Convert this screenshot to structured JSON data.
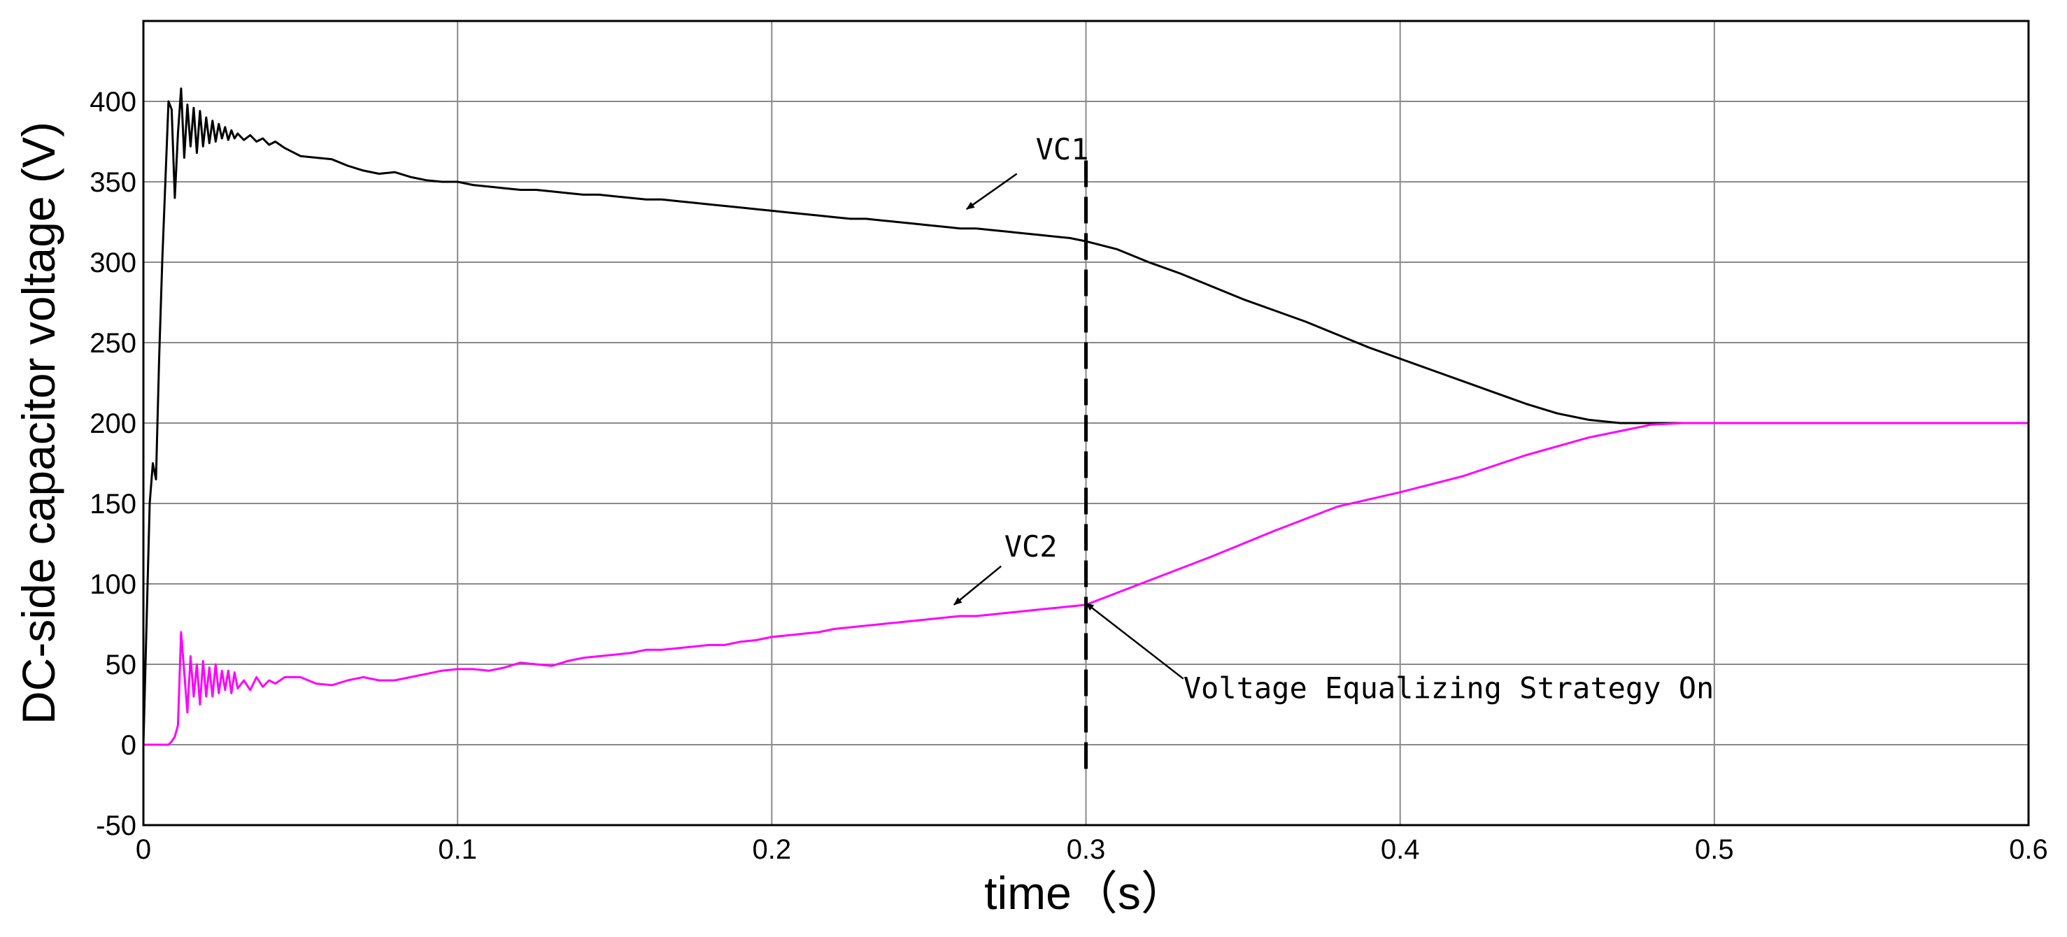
{
  "chart_data": {
    "type": "line",
    "title": "",
    "xlabel": "time（s）",
    "ylabel": "DC-side capacitor voltage (V)",
    "xlim": [
      0,
      0.6
    ],
    "ylim": [
      -50,
      450
    ],
    "grid": true,
    "x_ticks": [
      {
        "value": 0,
        "label": "0"
      },
      {
        "value": 0.1,
        "label": "0.1"
      },
      {
        "value": 0.2,
        "label": "0.2"
      },
      {
        "value": 0.3,
        "label": "0.3"
      },
      {
        "value": 0.4,
        "label": "0.4"
      },
      {
        "value": 0.5,
        "label": "0.5"
      },
      {
        "value": 0.6,
        "label": "0.6"
      }
    ],
    "y_ticks": [
      {
        "value": -50,
        "label": "-50"
      },
      {
        "value": 0,
        "label": "0"
      },
      {
        "value": 50,
        "label": "50"
      },
      {
        "value": 100,
        "label": "100"
      },
      {
        "value": 150,
        "label": "150"
      },
      {
        "value": 200,
        "label": "200"
      },
      {
        "value": 250,
        "label": "250"
      },
      {
        "value": 300,
        "label": "300"
      },
      {
        "value": 350,
        "label": "350"
      },
      {
        "value": 400,
        "label": "400"
      }
    ],
    "series": [
      {
        "name": "VC1",
        "color": "#000000",
        "x": [
          0,
          0.002,
          0.003,
          0.004,
          0.005,
          0.006,
          0.008,
          0.009,
          0.01,
          0.011,
          0.012,
          0.013,
          0.014,
          0.015,
          0.016,
          0.017,
          0.018,
          0.019,
          0.02,
          0.021,
          0.022,
          0.023,
          0.024,
          0.025,
          0.026,
          0.027,
          0.028,
          0.029,
          0.03,
          0.032,
          0.034,
          0.036,
          0.038,
          0.04,
          0.042,
          0.045,
          0.05,
          0.055,
          0.06,
          0.065,
          0.07,
          0.075,
          0.08,
          0.085,
          0.09,
          0.095,
          0.1,
          0.105,
          0.11,
          0.115,
          0.12,
          0.125,
          0.13,
          0.135,
          0.14,
          0.145,
          0.15,
          0.155,
          0.16,
          0.165,
          0.17,
          0.175,
          0.18,
          0.185,
          0.19,
          0.195,
          0.2,
          0.205,
          0.21,
          0.215,
          0.22,
          0.225,
          0.23,
          0.235,
          0.24,
          0.245,
          0.25,
          0.255,
          0.26,
          0.265,
          0.27,
          0.275,
          0.28,
          0.285,
          0.29,
          0.295,
          0.3,
          0.31,
          0.32,
          0.33,
          0.34,
          0.35,
          0.36,
          0.37,
          0.38,
          0.39,
          0.4,
          0.41,
          0.42,
          0.43,
          0.44,
          0.45,
          0.46,
          0.47,
          0.48,
          0.49,
          0.5,
          0.52,
          0.54,
          0.56,
          0.58,
          0.6
        ],
        "y": [
          0,
          150,
          175,
          165,
          240,
          300,
          400,
          395,
          340,
          380,
          408,
          365,
          398,
          372,
          396,
          368,
          394,
          372,
          390,
          374,
          388,
          375,
          386,
          377,
          384,
          376,
          382,
          377,
          380,
          376,
          379,
          375,
          377,
          373,
          375,
          371,
          366,
          365,
          364,
          360,
          357,
          355,
          356,
          353,
          351,
          350,
          350,
          348,
          347,
          346,
          345,
          345,
          344,
          343,
          342,
          342,
          341,
          340,
          339,
          339,
          338,
          337,
          336,
          335,
          334,
          333,
          332,
          331,
          330,
          329,
          328,
          327,
          327,
          326,
          325,
          324,
          323,
          322,
          321,
          321,
          320,
          319,
          318,
          317,
          316,
          315,
          313,
          308,
          300,
          293,
          285,
          277,
          270,
          263,
          255,
          247,
          240,
          233,
          226,
          219,
          212,
          206,
          202,
          200,
          200,
          200,
          200,
          200,
          200,
          200,
          200,
          200
        ]
      },
      {
        "name": "VC2",
        "color": "#ff00ff",
        "x": [
          0,
          0.005,
          0.008,
          0.009,
          0.01,
          0.011,
          0.012,
          0.013,
          0.014,
          0.015,
          0.016,
          0.017,
          0.018,
          0.019,
          0.02,
          0.021,
          0.022,
          0.023,
          0.024,
          0.025,
          0.026,
          0.027,
          0.028,
          0.029,
          0.03,
          0.032,
          0.034,
          0.036,
          0.038,
          0.04,
          0.042,
          0.045,
          0.05,
          0.055,
          0.06,
          0.065,
          0.07,
          0.075,
          0.08,
          0.085,
          0.09,
          0.095,
          0.1,
          0.105,
          0.11,
          0.115,
          0.12,
          0.125,
          0.13,
          0.135,
          0.14,
          0.145,
          0.15,
          0.155,
          0.16,
          0.165,
          0.17,
          0.175,
          0.18,
          0.185,
          0.19,
          0.195,
          0.2,
          0.205,
          0.21,
          0.215,
          0.22,
          0.225,
          0.23,
          0.235,
          0.24,
          0.245,
          0.25,
          0.255,
          0.26,
          0.265,
          0.27,
          0.275,
          0.28,
          0.285,
          0.29,
          0.295,
          0.3,
          0.32,
          0.34,
          0.36,
          0.38,
          0.4,
          0.42,
          0.44,
          0.46,
          0.47,
          0.48,
          0.49,
          0.5,
          0.52,
          0.54,
          0.56,
          0.58,
          0.6
        ],
        "y": [
          0,
          0,
          0,
          2,
          5,
          12,
          70,
          45,
          20,
          55,
          30,
          50,
          25,
          52,
          30,
          48,
          30,
          50,
          32,
          46,
          34,
          46,
          32,
          45,
          35,
          40,
          34,
          42,
          36,
          40,
          38,
          42,
          42,
          38,
          37,
          40,
          42,
          40,
          40,
          42,
          44,
          46,
          47,
          47,
          46,
          48,
          51,
          50,
          49,
          52,
          54,
          55,
          56,
          57,
          59,
          59,
          60,
          61,
          62,
          62,
          64,
          65,
          67,
          68,
          69,
          70,
          72,
          73,
          74,
          75,
          76,
          77,
          78,
          79,
          80,
          80,
          81,
          82,
          83,
          84,
          85,
          86,
          87,
          102,
          117,
          133,
          148,
          157,
          167,
          180,
          191,
          195,
          199,
          200,
          200,
          200,
          200,
          200,
          200,
          200
        ]
      }
    ],
    "marker": {
      "x": 0.3,
      "y_from": -15,
      "y_to": 365
    },
    "annotations": [
      {
        "label": "VC1",
        "text_at": [
          0.284,
          364
        ],
        "arrow_from": [
          0.278,
          355
        ],
        "arrow_to": [
          0.262,
          333
        ]
      },
      {
        "label": "VC2",
        "text_at": [
          0.274,
          117
        ],
        "arrow_from": [
          0.273,
          111
        ],
        "arrow_to": [
          0.258,
          87
        ]
      },
      {
        "label": "Voltage Equalizing Strategy On",
        "text_at": [
          0.331,
          29
        ],
        "arrow_from": [
          0.331,
          41
        ],
        "arrow_to": [
          0.3,
          88
        ]
      }
    ]
  }
}
